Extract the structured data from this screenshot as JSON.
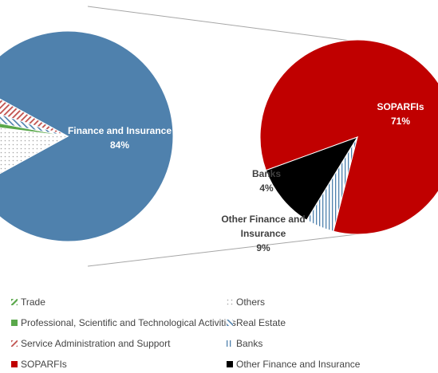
{
  "chart_data": [
    {
      "type": "pie",
      "slices": [
        {
          "label": "Finance and Insurance",
          "value": 84,
          "value_label": "84%",
          "color": "#4f81ad",
          "pattern": "solid"
        },
        {
          "label": "Others",
          "value": 10,
          "color": "#d9d9d9",
          "pattern": "dots"
        },
        {
          "label": "Professional, Scientific and Technological Activities",
          "value": 1,
          "color": "#5aa84b",
          "pattern": "solid"
        },
        {
          "label": "Real Estate",
          "value": 2,
          "color": "#4f81ad",
          "pattern": "diagonal"
        },
        {
          "label": "Service Administration and Support",
          "value": 3,
          "color": "#c0504d",
          "pattern": "zigzag"
        }
      ]
    },
    {
      "type": "pie",
      "breakdown_of": "Finance and Insurance",
      "slices": [
        {
          "label": "SOPARFIs",
          "value": 71,
          "value_label": "71%",
          "color": "#c00000",
          "pattern": "solid"
        },
        {
          "label": "Banks",
          "value": 4,
          "value_label": "4%",
          "color": "#4f81ad",
          "pattern": "vertical"
        },
        {
          "label": "Other Finance and Insurance",
          "value": 9,
          "value_label": "9%",
          "color": "#000000",
          "pattern": "solid"
        }
      ]
    }
  ],
  "legend": [
    {
      "label": "Trade",
      "color": "#5aa84b",
      "pattern": "diagonal"
    },
    {
      "label": "Others",
      "color": "#bfbfbf",
      "pattern": "dots"
    },
    {
      "label": "Professional, Scientific and Technological Activities",
      "color": "#5aa84b",
      "pattern": "solid"
    },
    {
      "label": "Real Estate",
      "color": "#4f81ad",
      "pattern": "diagonal"
    },
    {
      "label": "Service Administration and Support",
      "color": "#c0504d",
      "pattern": "zigzag"
    },
    {
      "label": "Banks",
      "color": "#4f81ad",
      "pattern": "vertical"
    },
    {
      "label": "SOPARFIs",
      "color": "#c00000",
      "pattern": "solid"
    },
    {
      "label": "Other Finance and Insurance",
      "color": "#000000",
      "pattern": "solid"
    }
  ]
}
